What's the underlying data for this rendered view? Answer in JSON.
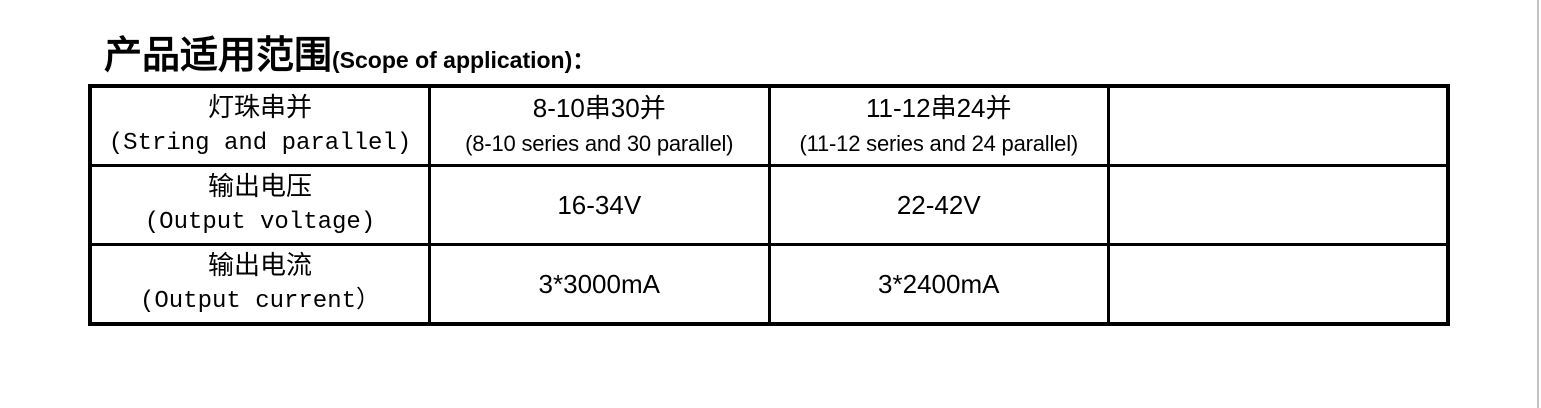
{
  "title": {
    "zh": "产品适用范围",
    "en_suffix": "(Scope of application)："
  },
  "table": {
    "rows": [
      {
        "cells": [
          {
            "line1": "灯珠串并",
            "line2": "(String and parallel)"
          },
          {
            "line1": "8-10串30并",
            "line2": "(8-10 series and 30 parallel)"
          },
          {
            "line1": "11-12串24并",
            "line2": "(11-12 series and 24 parallel)"
          },
          {
            "line1": "",
            "line2": ""
          }
        ]
      },
      {
        "cells": [
          {
            "line1": "输出电压",
            "line2": "(Output voltage)"
          },
          {
            "line1": "16-34V",
            "line2": ""
          },
          {
            "line1": "22-42V",
            "line2": ""
          },
          {
            "line1": "",
            "line2": ""
          }
        ]
      },
      {
        "cells": [
          {
            "line1": "输出电流",
            "line2": "(Output current）"
          },
          {
            "line1": "3*3000mA",
            "line2": ""
          },
          {
            "line1": "3*2400mA",
            "line2": ""
          },
          {
            "line1": "",
            "line2": ""
          }
        ]
      }
    ]
  },
  "colors": {
    "text": "#000000",
    "table_border": "#000000",
    "background": "#ffffff",
    "page_edge_line": "#c3c3c3"
  }
}
